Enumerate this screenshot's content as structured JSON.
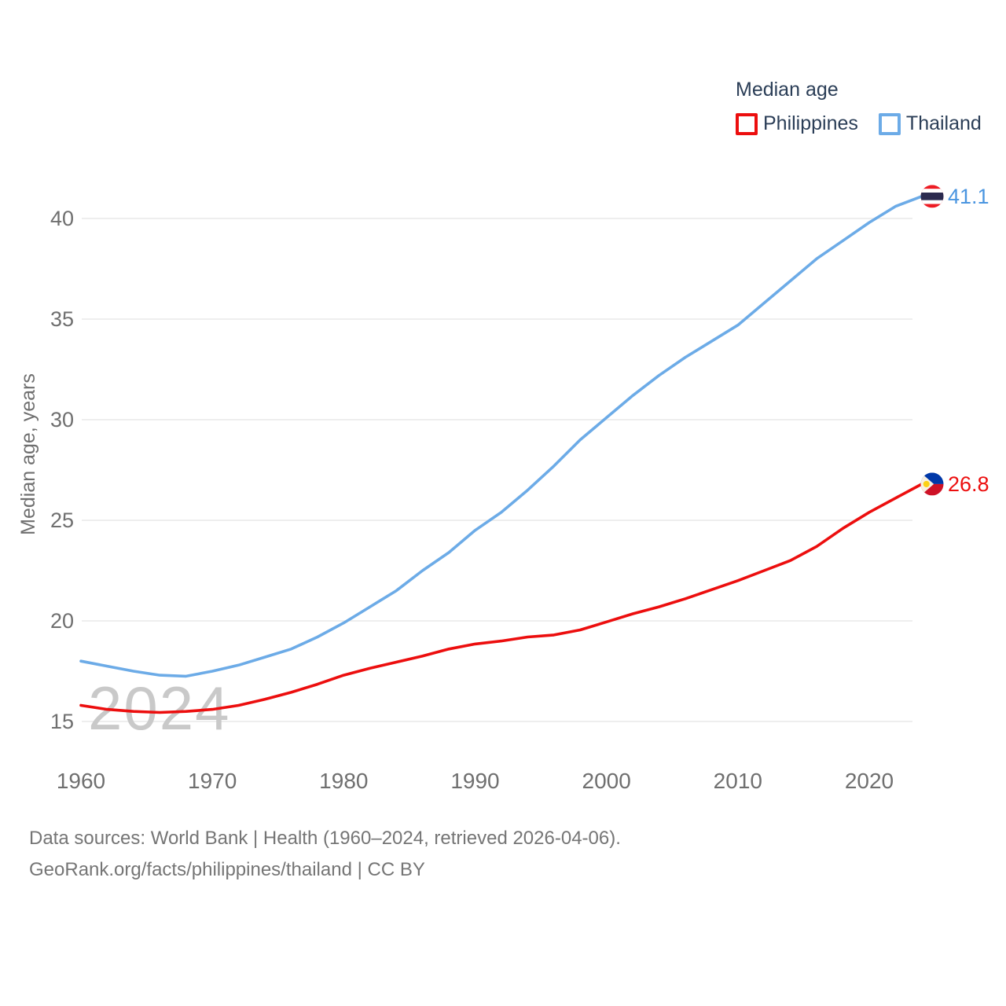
{
  "legend": {
    "title": "Median age",
    "items": [
      {
        "label": "Philippines",
        "swatch_color": "#ec0e0e"
      },
      {
        "label": "Thailand",
        "swatch_color": "#6cabe7"
      }
    ]
  },
  "chart_data": {
    "type": "line",
    "title": "Median age",
    "xlabel": "",
    "ylabel": "Median age, years",
    "x_ticks": [
      1960,
      1970,
      1980,
      1990,
      2000,
      2010,
      2020
    ],
    "y_ticks": [
      15,
      20,
      25,
      30,
      35,
      40
    ],
    "xlim": [
      1960,
      2024
    ],
    "ylim": [
      15,
      42
    ],
    "grid": true,
    "legend_position": "top-right",
    "watermark": "2024",
    "axis_text_color": "#6f6f6f",
    "grid_color": "#e9e9e9",
    "watermark_color": "#c9c9c9",
    "series": [
      {
        "name": "Thailand",
        "color": "#6cabe7",
        "label_color": "#4a95e0",
        "flag": "thailand",
        "end_label": "41.1",
        "end_value": 41.1,
        "x": [
          1960,
          1962,
          1964,
          1966,
          1968,
          1970,
          1972,
          1974,
          1976,
          1978,
          1980,
          1982,
          1984,
          1986,
          1988,
          1990,
          1992,
          1994,
          1996,
          1998,
          2000,
          2002,
          2004,
          2006,
          2008,
          2010,
          2012,
          2014,
          2016,
          2018,
          2020,
          2022,
          2024
        ],
        "values": [
          18.0,
          17.75,
          17.5,
          17.3,
          17.25,
          17.5,
          17.8,
          18.2,
          18.6,
          19.2,
          19.9,
          20.7,
          21.5,
          22.5,
          23.4,
          24.5,
          25.4,
          26.5,
          27.7,
          29.0,
          30.1,
          31.2,
          32.2,
          33.1,
          33.9,
          34.7,
          35.8,
          36.9,
          38.0,
          38.9,
          39.8,
          40.6,
          41.1
        ]
      },
      {
        "name": "Philippines",
        "color": "#ec0e0e",
        "label_color": "#ec0e0e",
        "flag": "philippines",
        "end_label": "26.8",
        "end_value": 26.8,
        "x": [
          1960,
          1962,
          1964,
          1966,
          1968,
          1970,
          1972,
          1974,
          1976,
          1978,
          1980,
          1982,
          1984,
          1986,
          1988,
          1990,
          1992,
          1994,
          1996,
          1998,
          2000,
          2002,
          2004,
          2006,
          2008,
          2010,
          2012,
          2014,
          2016,
          2018,
          2020,
          2022,
          2024
        ],
        "values": [
          15.8,
          15.6,
          15.5,
          15.45,
          15.5,
          15.6,
          15.8,
          16.1,
          16.45,
          16.85,
          17.3,
          17.65,
          17.95,
          18.25,
          18.6,
          18.85,
          19.0,
          19.2,
          19.3,
          19.55,
          19.95,
          20.35,
          20.7,
          21.1,
          21.55,
          22.0,
          22.5,
          23.0,
          23.7,
          24.6,
          25.4,
          26.1,
          26.8
        ]
      }
    ]
  },
  "footer": {
    "line1": "Data sources: World Bank | Health (1960–2024, retrieved 2026-04-06).",
    "line2": "GeoRank.org/facts/philippines/thailand | CC BY"
  }
}
